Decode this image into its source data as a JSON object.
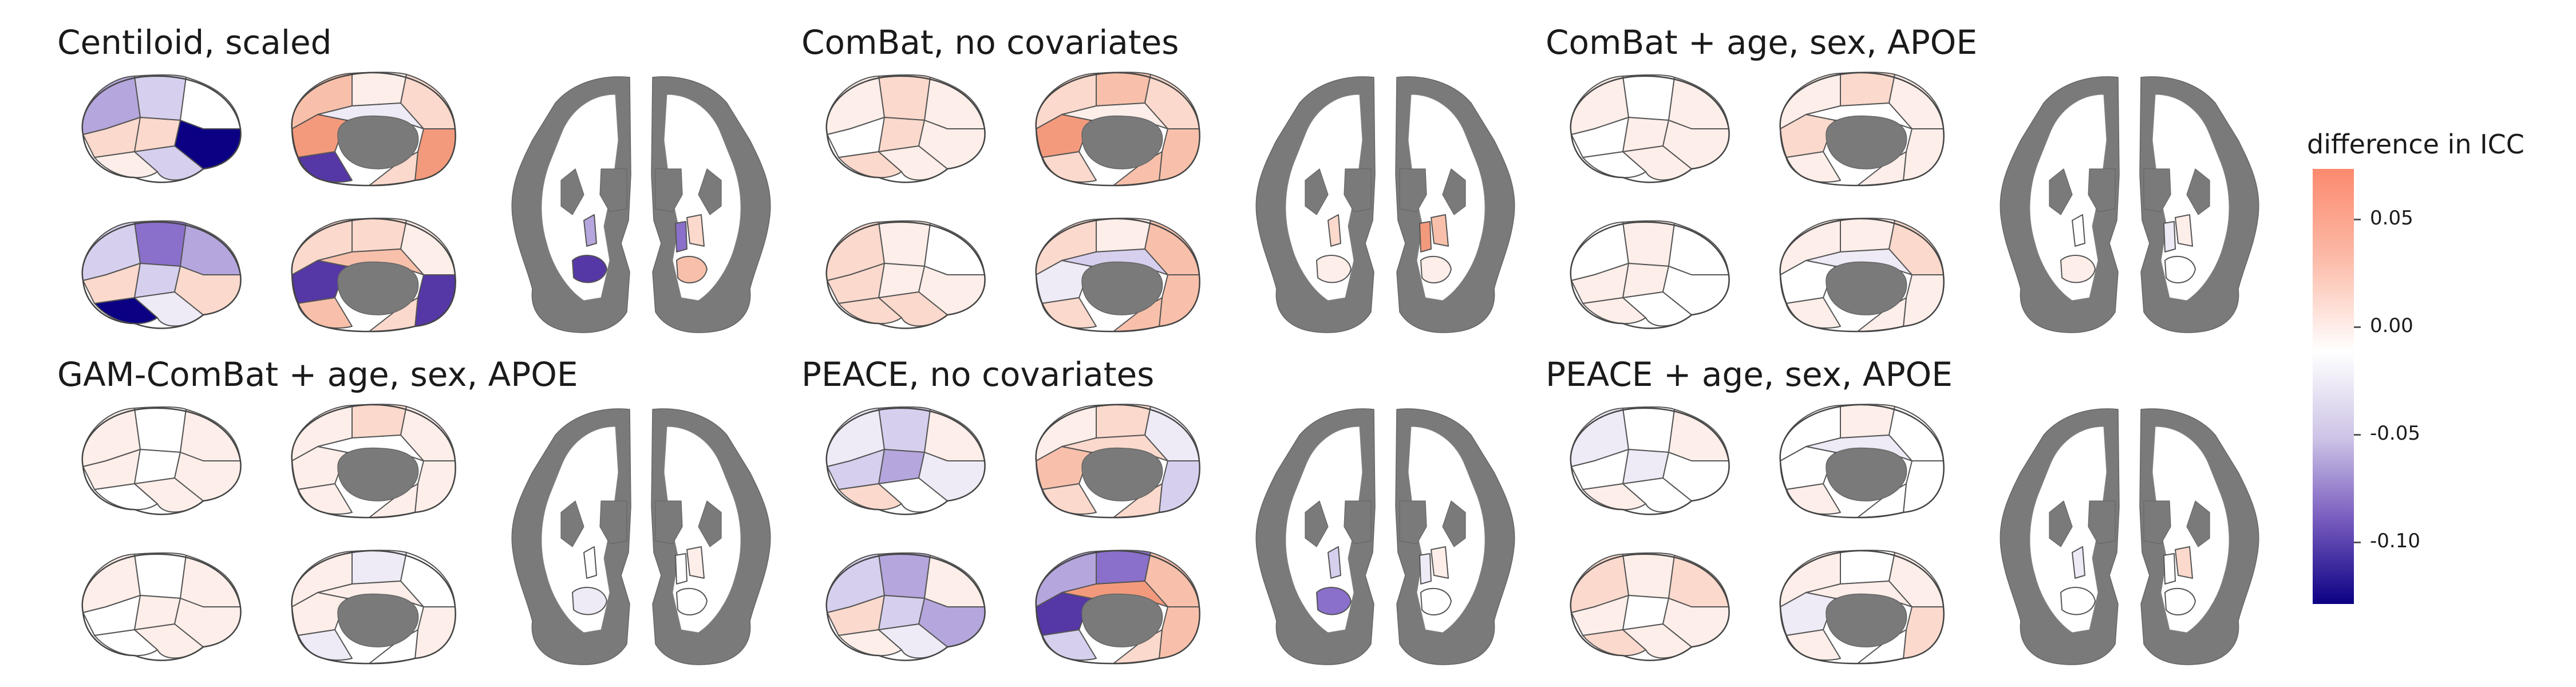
{
  "panels": [
    {
      "title": "Centiloid, scaled"
    },
    {
      "title": "ComBat, no covariates"
    },
    {
      "title": "ComBat + age, sex, APOE"
    },
    {
      "title": "GAM-ComBat + age, sex, APOE"
    },
    {
      "title": "PEACE, no covariates"
    },
    {
      "title": "PEACE + age, sex, APOE"
    }
  ],
  "legend": {
    "title": "difference in ICC",
    "ticks": [
      "0.05",
      "0.00",
      "-0.05",
      "-0.10"
    ],
    "color_max": "#fb8a6e",
    "color_mid": "#ffffff",
    "color_min": "#0b0083"
  },
  "colors": {
    "subcortical_gray": "#7a7a7a",
    "region_outline": "#555555"
  }
}
